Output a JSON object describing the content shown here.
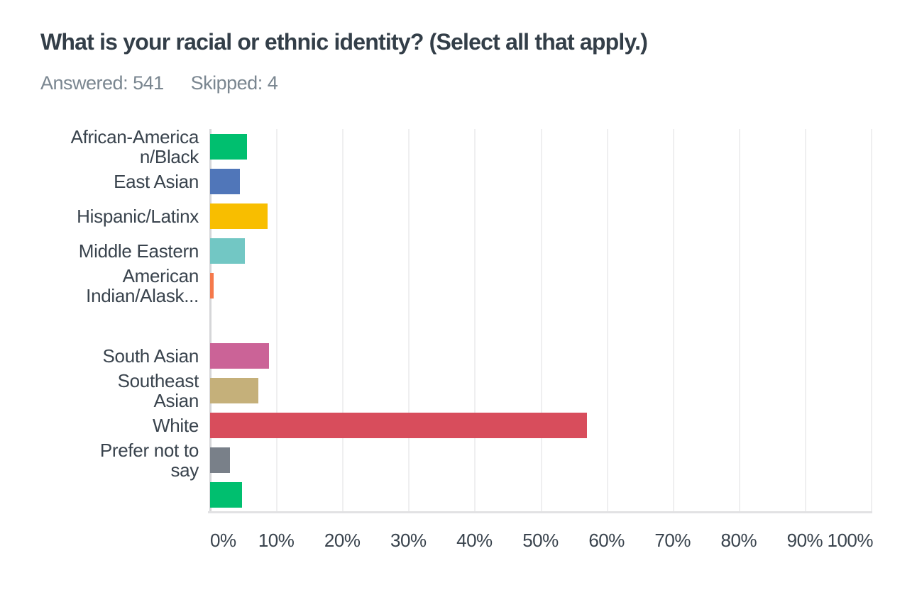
{
  "header": {
    "title": "What is your racial or ethnic identity? (Select all that apply.)",
    "answered": "Answered: 541",
    "skipped": "Skipped: 4"
  },
  "chart_data": {
    "type": "bar",
    "orientation": "horizontal",
    "title": "What is your racial or ethnic identity? (Select all that apply.)",
    "xlabel": "",
    "ylabel": "",
    "xlim": [
      0,
      100
    ],
    "grid": true,
    "legend": false,
    "x_ticks": [
      "0%",
      "10%",
      "20%",
      "30%",
      "40%",
      "50%",
      "60%",
      "70%",
      "80%",
      "90%",
      "100%"
    ],
    "categories": [
      "African-American/Black",
      "East Asian",
      "Hispanic/Latinx",
      "Middle Eastern",
      "American Indian/Alask...",
      "",
      "South Asian",
      "Southeast Asian",
      "White",
      "Prefer not to say",
      ""
    ],
    "label_lines": [
      [
        "African-America",
        "n/Black"
      ],
      [
        "East Asian"
      ],
      [
        "Hispanic/Latinx"
      ],
      [
        "Middle Eastern"
      ],
      [
        "American",
        "Indian/Alask..."
      ],
      [],
      [
        "South Asian"
      ],
      [
        "Southeast",
        "Asian"
      ],
      [
        "White"
      ],
      [
        "Prefer not to",
        "say"
      ],
      []
    ],
    "values": [
      5.6,
      4.55,
      8.7,
      5.25,
      0.55,
      0,
      8.9,
      7.35,
      57.0,
      3.05,
      4.8
    ],
    "bar_colors": [
      "#00BF6F",
      "#5076B9",
      "#F8BE00",
      "#72C7C4",
      "#F5794B",
      "",
      "#CB6397",
      "#C5B07A",
      "#D84D5C",
      "#798089",
      "#00BF6F"
    ]
  },
  "colors": {
    "title_text": "#333E48",
    "meta_text": "#7A8690",
    "label_text": "#39434D",
    "gridline": "#EFEFF0",
    "axis_line": "#D5D6D8",
    "baseline": "#E2E2E4",
    "background": "#FFFFFF"
  }
}
